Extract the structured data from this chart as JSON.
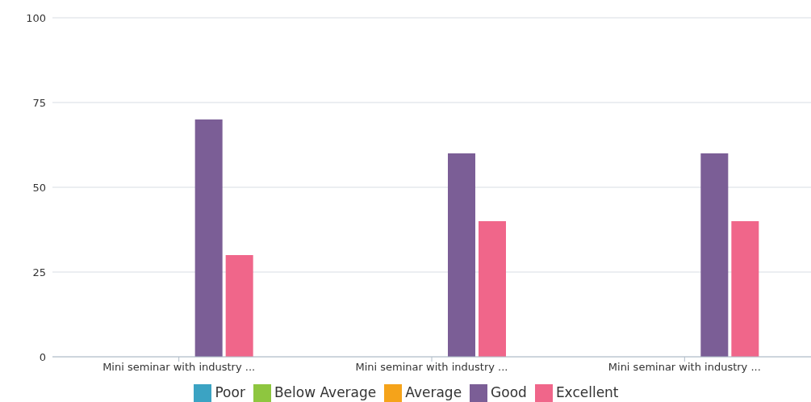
{
  "chart_data": {
    "type": "bar",
    "categories": [
      "Mini seminar with industry ...",
      "Mini seminar with industry ...",
      "Mini seminar with industry ..."
    ],
    "series": [
      {
        "name": "Poor",
        "color": "#3ba3c3",
        "values": [
          0,
          0,
          0
        ]
      },
      {
        "name": "Below Average",
        "color": "#8ec63f",
        "values": [
          0,
          0,
          0
        ]
      },
      {
        "name": "Average",
        "color": "#f5a31a",
        "values": [
          0,
          0,
          0
        ]
      },
      {
        "name": "Good",
        "color": "#7b5e96",
        "values": [
          70,
          60,
          60
        ]
      },
      {
        "name": "Excellent",
        "color": "#f0668a",
        "values": [
          30,
          40,
          40
        ]
      }
    ],
    "ylim": [
      0,
      100
    ],
    "yticks": [
      0,
      25,
      50,
      75,
      100
    ],
    "grid": "y",
    "legend": "bottom"
  }
}
